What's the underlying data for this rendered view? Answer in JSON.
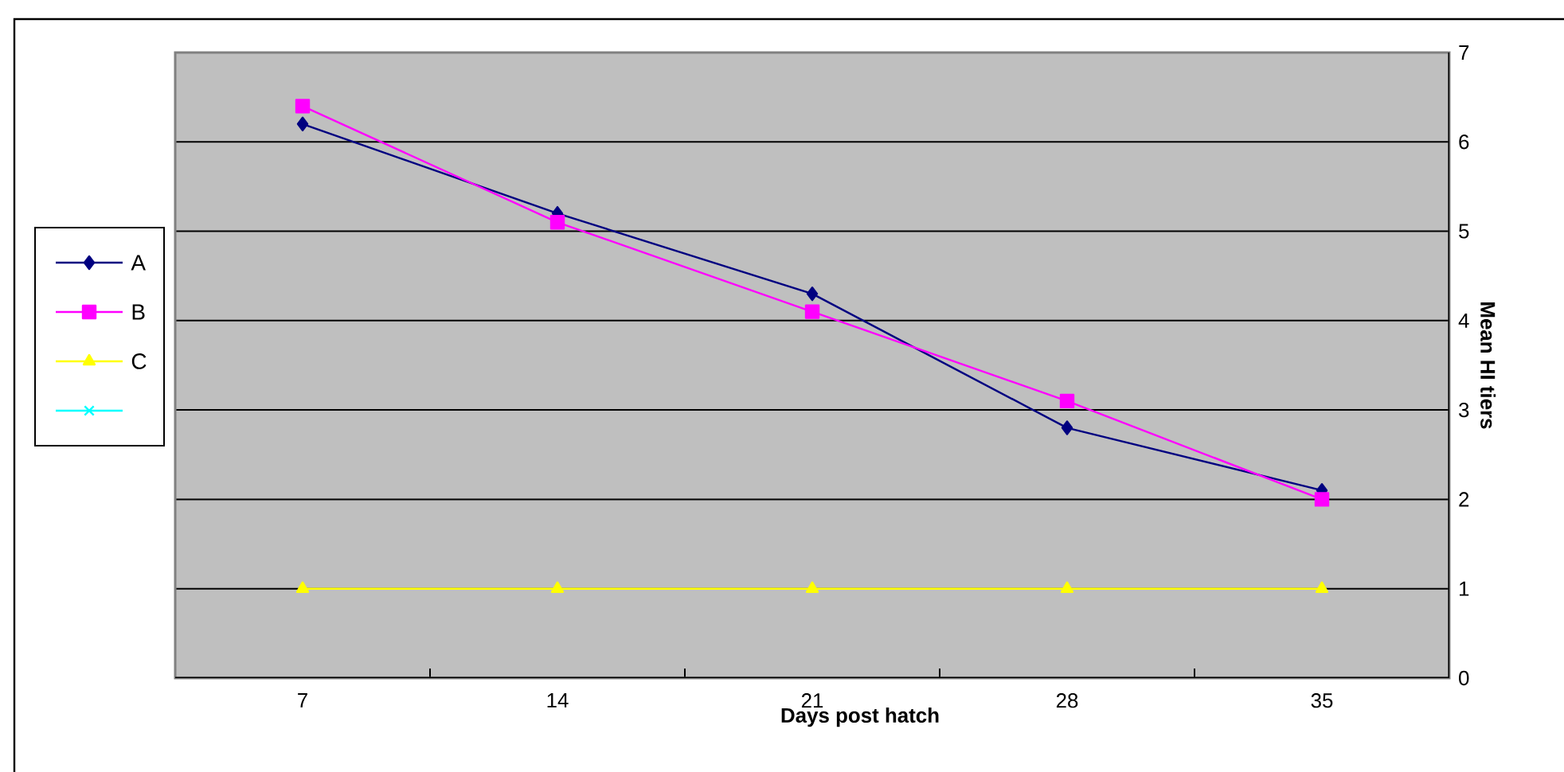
{
  "chart_data": {
    "type": "line",
    "xlabel": "Days post hatch",
    "ylabel": "Mean HI tiers",
    "categories": [
      "7",
      "14",
      "21",
      "28",
      "35"
    ],
    "ylim": [
      0,
      7
    ],
    "yticks": [
      0,
      1,
      2,
      3,
      4,
      5,
      6,
      7
    ],
    "grid": "y",
    "legend": "left",
    "series": [
      {
        "name": "A",
        "color": "#000080",
        "marker": "diamond",
        "values": [
          6.2,
          5.2,
          4.3,
          2.8,
          2.1
        ]
      },
      {
        "name": "B",
        "color": "#ff00ff",
        "marker": "square",
        "values": [
          6.4,
          5.1,
          4.1,
          3.1,
          2.0
        ]
      },
      {
        "name": "C",
        "color": "#ffff00",
        "marker": "triangle",
        "values": [
          1,
          1,
          1,
          1,
          1
        ]
      },
      {
        "color": "#00ffff",
        "marker": "cross",
        "values": [
          null,
          null,
          null,
          null,
          null
        ]
      }
    ]
  }
}
